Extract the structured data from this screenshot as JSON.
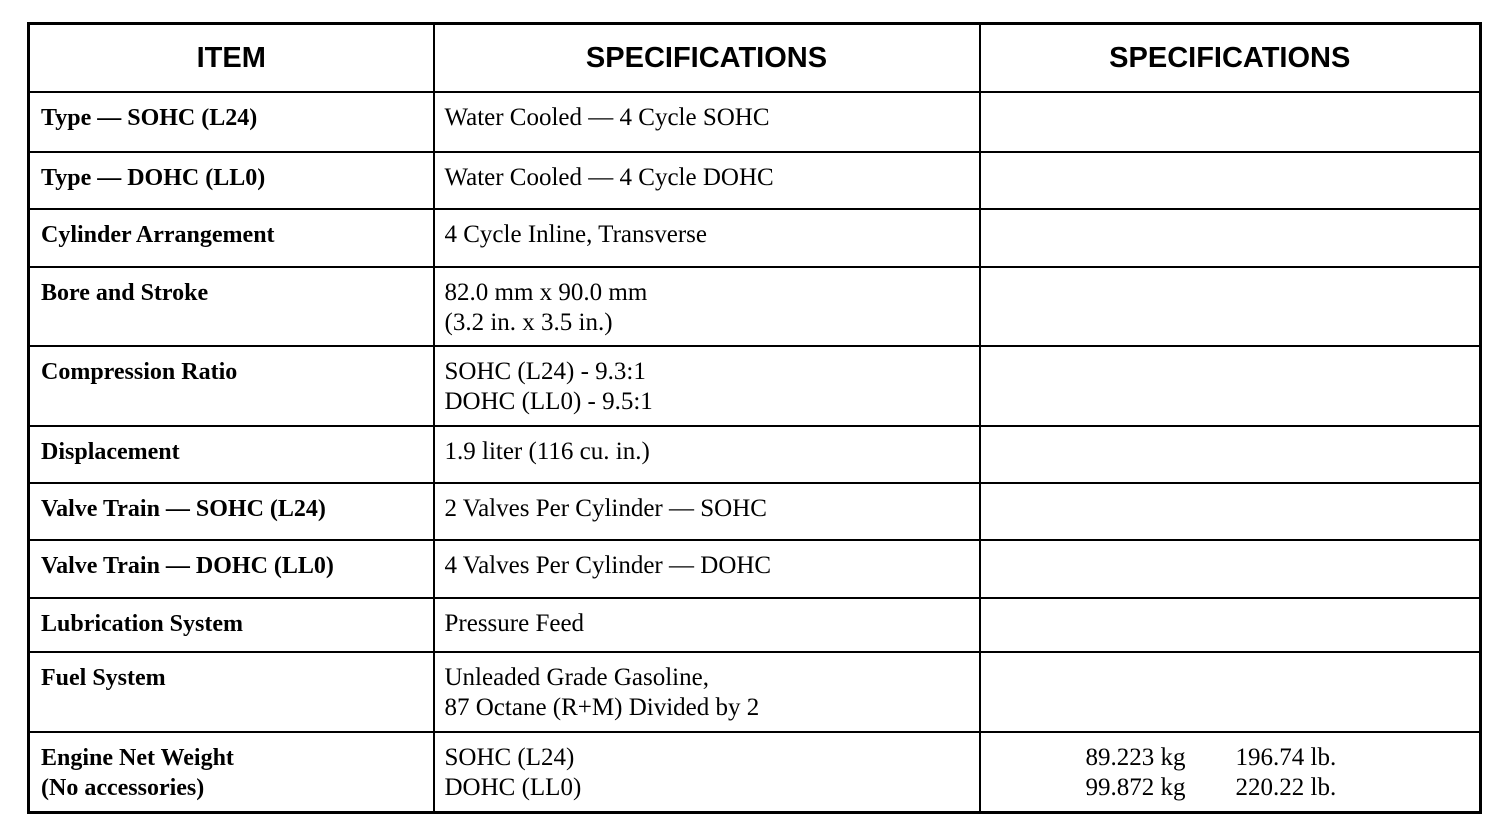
{
  "headers": [
    "ITEM",
    "SPECIFICATIONS",
    "SPECIFICATIONS"
  ],
  "rows": [
    {
      "item": [
        "Type — SOHC (L24)"
      ],
      "spec": [
        "Water Cooled — 4 Cycle SOHC"
      ],
      "spec2": []
    },
    {
      "item": [
        "Type — DOHC (LL0)"
      ],
      "spec": [
        "Water Cooled — 4 Cycle DOHC"
      ],
      "spec2": []
    },
    {
      "item": [
        "Cylinder Arrangement"
      ],
      "spec": [
        "4 Cycle Inline, Transverse"
      ],
      "spec2": []
    },
    {
      "item": [
        "Bore and Stroke"
      ],
      "spec": [
        "82.0 mm x 90.0 mm",
        "(3.2 in. x 3.5 in.)"
      ],
      "spec2": []
    },
    {
      "item": [
        "Compression Ratio"
      ],
      "spec": [
        "SOHC (L24) - 9.3:1",
        "DOHC (LL0) - 9.5:1"
      ],
      "spec2": []
    },
    {
      "item": [
        "Displacement"
      ],
      "spec": [
        "1.9 liter (116 cu. in.)"
      ],
      "spec2": []
    },
    {
      "item": [
        "Valve Train — SOHC (L24)"
      ],
      "spec": [
        "2 Valves Per Cylinder — SOHC"
      ],
      "spec2": []
    },
    {
      "item": [
        "Valve Train — DOHC (LL0)"
      ],
      "spec": [
        "4 Valves Per Cylinder — DOHC"
      ],
      "spec2": []
    },
    {
      "item": [
        "Lubrication System"
      ],
      "spec": [
        "Pressure Feed"
      ],
      "spec2": []
    },
    {
      "item": [
        "Fuel System"
      ],
      "spec": [
        "Unleaded Grade Gasoline,",
        "87 Octane (R+M) Divided by 2"
      ],
      "spec2": []
    },
    {
      "item": [
        "Engine Net Weight",
        "(No accessories)"
      ],
      "spec": [
        "SOHC (L24)",
        "DOHC (LL0)"
      ],
      "spec2": [
        [
          "89.223 kg",
          "196.74 lb."
        ],
        [
          "99.872 kg",
          "220.22 lb."
        ]
      ]
    }
  ]
}
